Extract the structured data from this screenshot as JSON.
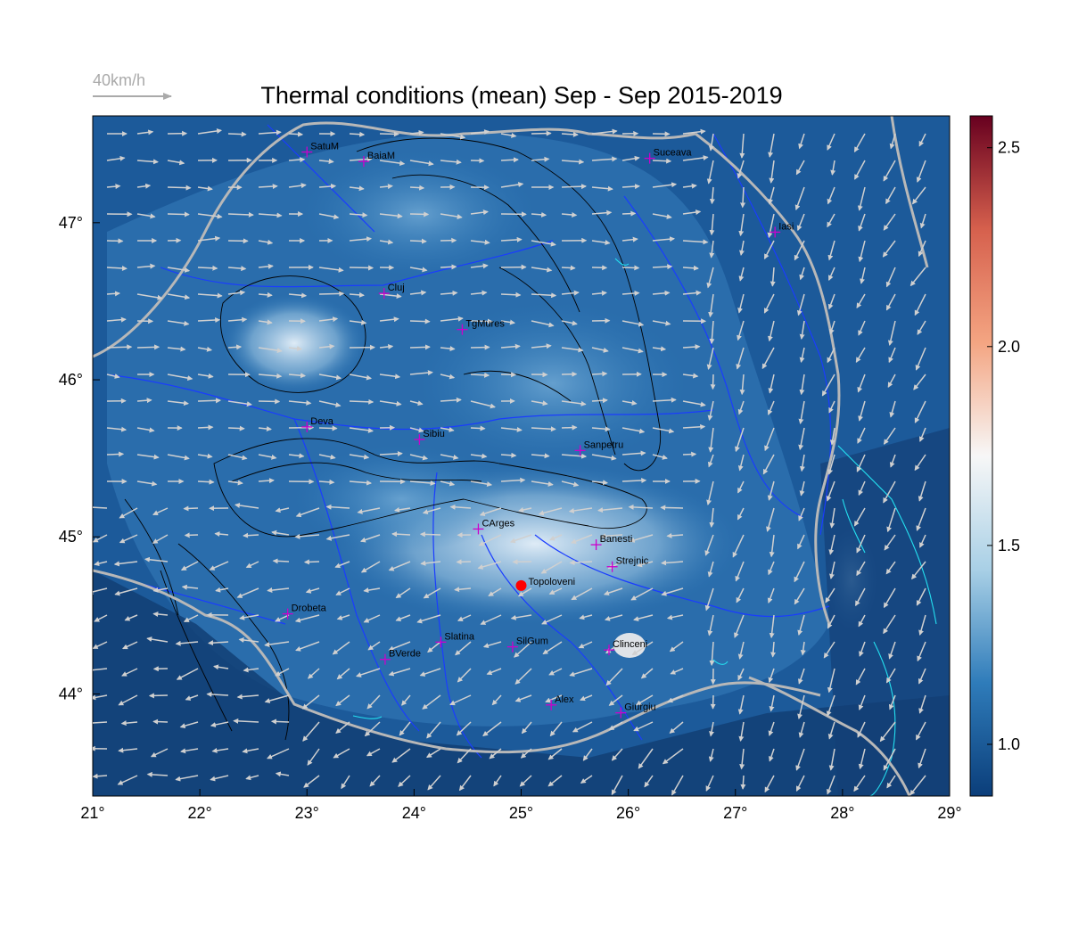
{
  "title": "Thermal conditions (mean) Sep - Sep  2015-2019",
  "wind_legend": {
    "label": "40km/h",
    "color": "#aaaaaa"
  },
  "map": {
    "lon_range": [
      21,
      29
    ],
    "lat_range": [
      43.35,
      47.68
    ],
    "lon_ticks": [
      "21°",
      "22°",
      "23°",
      "24°",
      "25°",
      "26°",
      "27°",
      "28°",
      "29°"
    ],
    "lat_ticks": [
      "44°",
      "45°",
      "46°",
      "47°"
    ],
    "colorbar": {
      "range": [
        0.87,
        2.58
      ],
      "ticks": [
        "1.0",
        "1.5",
        "2.0",
        "2.5"
      ],
      "colors": [
        "#0b3e7a",
        "#2f7cba",
        "#a9d0e6",
        "#f7f7f7",
        "#f4a582",
        "#d6604d",
        "#67001f"
      ]
    },
    "highlight": {
      "name": "Topoloveni",
      "lon": 25.0,
      "lat": 44.69,
      "color": "#ff0000"
    },
    "cities": [
      {
        "name": "SatuM",
        "lon": 23.0,
        "lat": 47.45
      },
      {
        "name": "BaiaM",
        "lon": 23.53,
        "lat": 47.39
      },
      {
        "name": "Suceava",
        "lon": 26.2,
        "lat": 47.41
      },
      {
        "name": "Iasi",
        "lon": 27.37,
        "lat": 46.94
      },
      {
        "name": "Cluj",
        "lon": 23.72,
        "lat": 46.55
      },
      {
        "name": "TgMures",
        "lon": 24.45,
        "lat": 46.32
      },
      {
        "name": "Deva",
        "lon": 23.0,
        "lat": 45.7
      },
      {
        "name": "Sibiu",
        "lon": 24.05,
        "lat": 45.62
      },
      {
        "name": "Sanpetru",
        "lon": 25.55,
        "lat": 45.55
      },
      {
        "name": "CArges",
        "lon": 24.6,
        "lat": 45.05
      },
      {
        "name": "Banesti",
        "lon": 25.7,
        "lat": 44.95
      },
      {
        "name": "Strejnic",
        "lon": 25.85,
        "lat": 44.81
      },
      {
        "name": "Drobeta",
        "lon": 22.82,
        "lat": 44.51
      },
      {
        "name": "Slatina",
        "lon": 24.25,
        "lat": 44.33
      },
      {
        "name": "SilGum",
        "lon": 24.92,
        "lat": 44.3
      },
      {
        "name": "Clinceni",
        "lon": 25.82,
        "lat": 44.28
      },
      {
        "name": "BVerde",
        "lon": 23.73,
        "lat": 44.22
      },
      {
        "name": "Alex",
        "lon": 25.28,
        "lat": 43.93
      },
      {
        "name": "Giurgiu",
        "lon": 25.93,
        "lat": 43.88
      }
    ],
    "city_marker_color": "#cc00cc",
    "wind_arrow_color": "#d0d0d0",
    "border_color": "#b8b8b8",
    "river_color": "#1a3cff",
    "contour_color": "#000000"
  }
}
